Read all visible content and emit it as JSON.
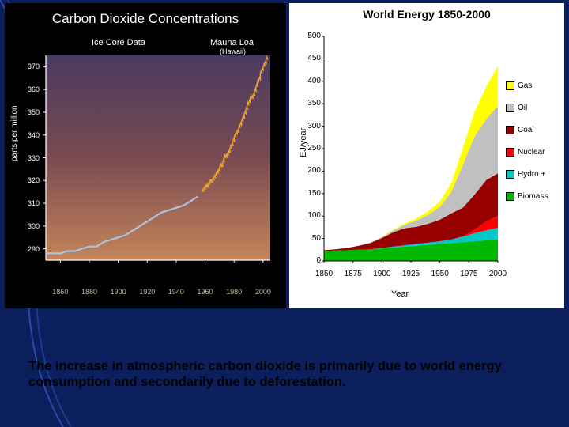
{
  "page_bg": "#0a1f5c",
  "caption": "The increase in atmospheric carbon dioxide is primarily due to world energy consumption and secondarily due to deforestation.",
  "left_chart": {
    "type": "line",
    "title": "Carbon Dioxide Concentrations",
    "subtitle_left": "Ice Core Data",
    "subtitle_right": "Mauna Loa",
    "subtitle_right_sub": "(Hawaii)",
    "ylabel": "parts per million",
    "xlim": [
      1850,
      2005
    ],
    "ylim": [
      285,
      375
    ],
    "yticks": [
      290,
      300,
      310,
      320,
      330,
      340,
      350,
      360,
      370
    ],
    "xticks": [
      1860,
      1880,
      1900,
      1920,
      1940,
      1960,
      1980,
      2000
    ],
    "gradient_top": "#4a3a62",
    "gradient_mid": "#7a4a52",
    "gradient_bot": "#c4855a",
    "axis_color": "#ffffff",
    "tick_label_color_x": "#c9b896",
    "series": [
      {
        "name": "ice_core",
        "color": "#a8c4e0",
        "stroke_width": 2.2,
        "points": [
          [
            1850,
            288
          ],
          [
            1855,
            288
          ],
          [
            1860,
            288
          ],
          [
            1865,
            289
          ],
          [
            1870,
            289
          ],
          [
            1875,
            290
          ],
          [
            1880,
            291
          ],
          [
            1885,
            291
          ],
          [
            1890,
            293
          ],
          [
            1895,
            294
          ],
          [
            1900,
            295
          ],
          [
            1905,
            296
          ],
          [
            1910,
            298
          ],
          [
            1915,
            300
          ],
          [
            1920,
            302
          ],
          [
            1925,
            304
          ],
          [
            1930,
            306
          ],
          [
            1935,
            307
          ],
          [
            1940,
            308
          ],
          [
            1945,
            309
          ],
          [
            1950,
            311
          ],
          [
            1955,
            313
          ]
        ]
      },
      {
        "name": "mauna_loa",
        "color": "#e8a030",
        "stroke_width": 1.4,
        "points": [
          [
            1958,
            315
          ],
          [
            1959,
            316
          ],
          [
            1960,
            317
          ],
          [
            1961,
            317
          ],
          [
            1962,
            318
          ],
          [
            1963,
            319
          ],
          [
            1964,
            319
          ],
          [
            1965,
            320
          ],
          [
            1966,
            321
          ],
          [
            1967,
            322
          ],
          [
            1968,
            323
          ],
          [
            1969,
            324
          ],
          [
            1970,
            326
          ],
          [
            1971,
            326
          ],
          [
            1972,
            328
          ],
          [
            1973,
            330
          ],
          [
            1974,
            330
          ],
          [
            1975,
            331
          ],
          [
            1976,
            332
          ],
          [
            1977,
            334
          ],
          [
            1978,
            335
          ],
          [
            1979,
            337
          ],
          [
            1980,
            339
          ],
          [
            1981,
            340
          ],
          [
            1982,
            341
          ],
          [
            1983,
            343
          ],
          [
            1984,
            344
          ],
          [
            1985,
            346
          ],
          [
            1986,
            347
          ],
          [
            1987,
            349
          ],
          [
            1988,
            351
          ],
          [
            1989,
            353
          ],
          [
            1990,
            354
          ],
          [
            1991,
            356
          ],
          [
            1992,
            356
          ],
          [
            1993,
            357
          ],
          [
            1994,
            359
          ],
          [
            1995,
            361
          ],
          [
            1996,
            363
          ],
          [
            1997,
            364
          ],
          [
            1998,
            367
          ],
          [
            1999,
            368
          ],
          [
            2000,
            370
          ],
          [
            2001,
            371
          ],
          [
            2002,
            373
          ]
        ],
        "wiggle_amplitude": 1.2
      }
    ]
  },
  "right_chart": {
    "type": "area",
    "title": "World Energy 1850-2000",
    "ylabel": "EJ/year",
    "xlabel": "Year",
    "background_color": "#ffffff",
    "xlim": [
      1850,
      2000
    ],
    "ylim": [
      0,
      500
    ],
    "yticks": [
      0,
      50,
      100,
      150,
      200,
      250,
      300,
      350,
      400,
      450,
      500
    ],
    "xticks": [
      1850,
      1875,
      1900,
      1925,
      1950,
      1975,
      2000
    ],
    "years": [
      1850,
      1860,
      1870,
      1880,
      1890,
      1900,
      1910,
      1920,
      1930,
      1940,
      1950,
      1960,
      1970,
      1980,
      1990,
      2000
    ],
    "series_order_bottom_to_top": [
      "biomass",
      "hydro",
      "nuclear",
      "coal",
      "oil",
      "gas"
    ],
    "series": {
      "biomass": {
        "color": "#00b800",
        "label": "Biomass",
        "values": [
          22,
          23,
          24,
          25,
          26,
          28,
          30,
          32,
          34,
          36,
          38,
          40,
          42,
          44,
          46,
          48
        ]
      },
      "hydro": {
        "color": "#00c8c8",
        "label": "Hydro +",
        "values": [
          0,
          0,
          0,
          0,
          0,
          1,
          2,
          3,
          4,
          5,
          6,
          8,
          12,
          18,
          22,
          26
        ]
      },
      "nuclear": {
        "color": "#ff0000",
        "label": "Nuclear",
        "values": [
          0,
          0,
          0,
          0,
          0,
          0,
          0,
          0,
          0,
          0,
          0,
          0,
          1,
          8,
          20,
          26
        ]
      },
      "coal": {
        "color": "#960000",
        "label": "Coal",
        "values": [
          2,
          3,
          5,
          9,
          14,
          22,
          32,
          38,
          38,
          42,
          48,
          58,
          64,
          78,
          92,
          95
        ]
      },
      "oil": {
        "color": "#c0c0c0",
        "label": "Oil",
        "values": [
          0,
          0,
          0,
          0,
          1,
          2,
          4,
          8,
          14,
          20,
          28,
          48,
          96,
          130,
          136,
          150
        ]
      },
      "gas": {
        "color": "#ffff00",
        "label": "Gas",
        "values": [
          0,
          0,
          0,
          0,
          0,
          1,
          2,
          3,
          5,
          8,
          12,
          20,
          38,
          55,
          72,
          90
        ]
      }
    },
    "legend_order": [
      "gas",
      "oil",
      "coal",
      "nuclear",
      "hydro",
      "biomass"
    ]
  }
}
